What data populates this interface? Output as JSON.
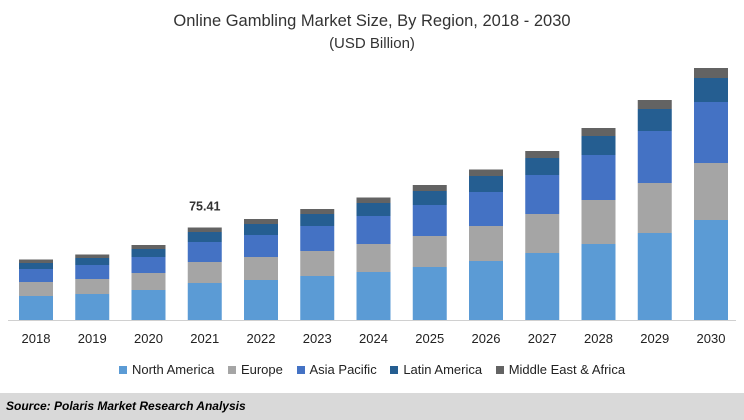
{
  "header": {
    "title": "Online Gambling Market Size, By Region, 2018 - 2030",
    "subtitle": "(USD Billion)"
  },
  "chart_data": {
    "type": "bar",
    "stacked": true,
    "title": "Online Gambling Market Size, By Region, 2018 - 2030",
    "subtitle": "(USD Billion)",
    "xlabel": "",
    "ylabel": "",
    "categories": [
      "2018",
      "2019",
      "2020",
      "2021",
      "2022",
      "2023",
      "2024",
      "2025",
      "2026",
      "2027",
      "2028",
      "2029",
      "2030"
    ],
    "ylim": [
      0,
      250
    ],
    "grid": false,
    "legend_position": "bottom",
    "series": [
      {
        "name": "North America",
        "color": "#5b9bd5",
        "values": [
          24,
          26,
          30,
          37,
          40,
          44,
          48,
          53,
          59,
          67,
          76,
          87,
          100
        ]
      },
      {
        "name": "Europe",
        "color": "#a5a5a5",
        "values": [
          14,
          15,
          17,
          21,
          23,
          25,
          28,
          31,
          35,
          39,
          44,
          50,
          57
        ]
      },
      {
        "name": "Asia Pacific",
        "color": "#4472c4",
        "values": [
          13,
          14,
          16,
          20,
          22,
          25,
          28,
          31,
          34,
          39,
          45,
          52,
          61
        ]
      },
      {
        "name": "Latin America",
        "color": "#255e91",
        "values": [
          6,
          7,
          8,
          10,
          11,
          12,
          13,
          14,
          16,
          17,
          19,
          22,
          24
        ]
      },
      {
        "name": "Middle East & Africa",
        "color": "#636363",
        "values": [
          3.5,
          3.5,
          4,
          4.5,
          5,
          5,
          5.5,
          6,
          6.5,
          7,
          8,
          9,
          10
        ]
      }
    ],
    "annotations": [
      {
        "category": "2021",
        "label": "75.41"
      }
    ]
  },
  "legend": {
    "items": [
      {
        "label": "North America",
        "color": "#5b9bd5"
      },
      {
        "label": "Europe",
        "color": "#a5a5a5"
      },
      {
        "label": "Asia Pacific",
        "color": "#4472c4"
      },
      {
        "label": "Latin America",
        "color": "#255e91"
      },
      {
        "label": "Middle East & Africa",
        "color": "#636363"
      }
    ]
  },
  "footer": {
    "source": "Source: Polaris  Market Research Analysis"
  }
}
